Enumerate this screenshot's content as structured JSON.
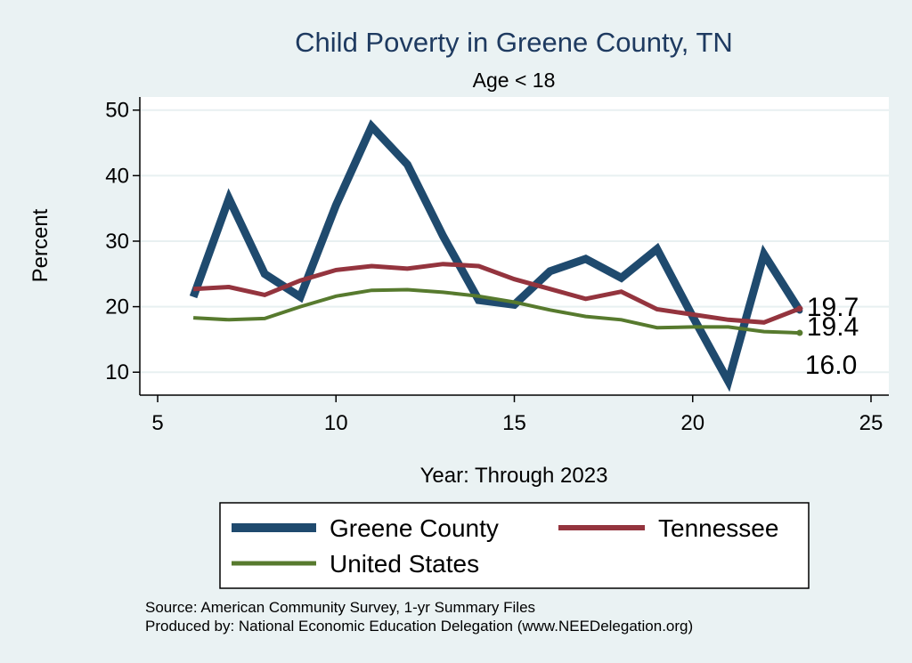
{
  "chart_data": {
    "type": "line",
    "title": "Child Poverty in Greene County, TN",
    "subtitle": "Age < 18",
    "xlabel": "Year: Through 2023",
    "ylabel": "Percent",
    "xlim": [
      4.5,
      25.5
    ],
    "ylim": [
      6.5,
      52
    ],
    "xticks": [
      5,
      10,
      15,
      20,
      25
    ],
    "yticks": [
      10,
      20,
      30,
      40,
      50
    ],
    "grid": true,
    "x": [
      6,
      7,
      8,
      9,
      10,
      11,
      12,
      13,
      14,
      15,
      16,
      17,
      18,
      19,
      20,
      21,
      22,
      23
    ],
    "series": [
      {
        "name": "Greene County",
        "color": "#1f4a6e",
        "values": [
          21.5,
          36.5,
          25.0,
          21.5,
          35.5,
          47.5,
          41.7,
          30.8,
          21.0,
          20.3,
          25.4,
          27.3,
          24.4,
          28.8,
          18.5,
          8.6,
          28.0,
          19.4
        ],
        "end_label": "19.4"
      },
      {
        "name": "Tennessee",
        "color": "#94343e",
        "values": [
          22.7,
          23.0,
          21.8,
          24.0,
          25.6,
          26.2,
          25.8,
          26.5,
          26.2,
          24.2,
          22.7,
          21.2,
          22.3,
          19.6,
          18.8,
          18.0,
          17.6,
          19.7
        ],
        "end_label": "19.7"
      },
      {
        "name": "United States",
        "color": "#577a2e",
        "values": [
          18.3,
          18.0,
          18.2,
          20.0,
          21.6,
          22.5,
          22.6,
          22.2,
          21.6,
          20.7,
          19.5,
          18.5,
          18.0,
          16.8,
          16.9,
          16.9,
          16.2,
          16.0
        ],
        "end_label": "16.0"
      }
    ],
    "legend": {
      "position": "bottom",
      "items": [
        "Greene County",
        "Tennessee",
        "United States"
      ]
    }
  },
  "notes": {
    "source": "Source: American Community Survey, 1-yr Summary Files",
    "produced": "Produced by: National Economic Education Delegation (www.NEEDelegation.org)"
  },
  "colors": {
    "background": "#eaf2f3",
    "plot_background": "#ffffff",
    "grid": "#e8f0f1"
  }
}
